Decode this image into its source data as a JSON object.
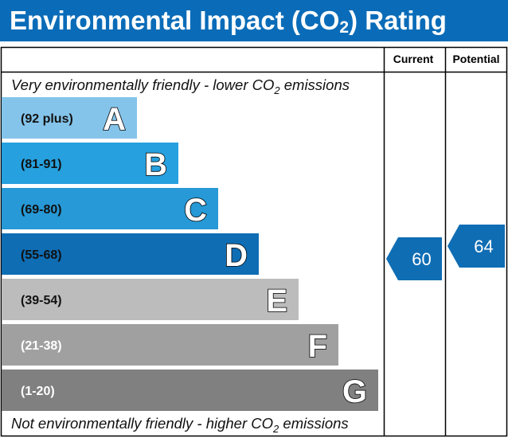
{
  "chart_data": {
    "type": "table",
    "title_parts": [
      "Environmental Impact (CO",
      "2",
      ") Rating"
    ],
    "column_headers": {
      "current": "Current",
      "potential": "Potential"
    },
    "top_note": [
      "Very environmentally friendly - lower CO",
      "2",
      " emissions"
    ],
    "bottom_note": [
      "Not environmentally friendly - higher CO",
      "2",
      " emissions"
    ],
    "bands": [
      {
        "letter": "A",
        "range": "(92 plus)",
        "min": 92,
        "max": 100,
        "color": "#84c4ea",
        "range_color": "#111111"
      },
      {
        "letter": "B",
        "range": "(81-91)",
        "min": 81,
        "max": 91,
        "color": "#26a0de",
        "range_color": "#111111"
      },
      {
        "letter": "C",
        "range": "(69-80)",
        "min": 69,
        "max": 80,
        "color": "#2699d6",
        "range_color": "#111111"
      },
      {
        "letter": "D",
        "range": "(55-68)",
        "min": 55,
        "max": 68,
        "color": "#0f6db4",
        "range_color": "#111111"
      },
      {
        "letter": "E",
        "range": "(39-54)",
        "min": 39,
        "max": 54,
        "color": "#bcbcbc",
        "range_color": "#111111"
      },
      {
        "letter": "F",
        "range": "(21-38)",
        "min": 21,
        "max": 38,
        "color": "#a0a0a0",
        "range_color": "#ffffff"
      },
      {
        "letter": "G",
        "range": "(1-20)",
        "min": 1,
        "max": 20,
        "color": "#808080",
        "range_color": "#ffffff"
      }
    ],
    "current": {
      "value": 60,
      "band": "D",
      "color": "#0f6db4"
    },
    "potential": {
      "value": 64,
      "band": "D",
      "color": "#0f6db4"
    }
  }
}
